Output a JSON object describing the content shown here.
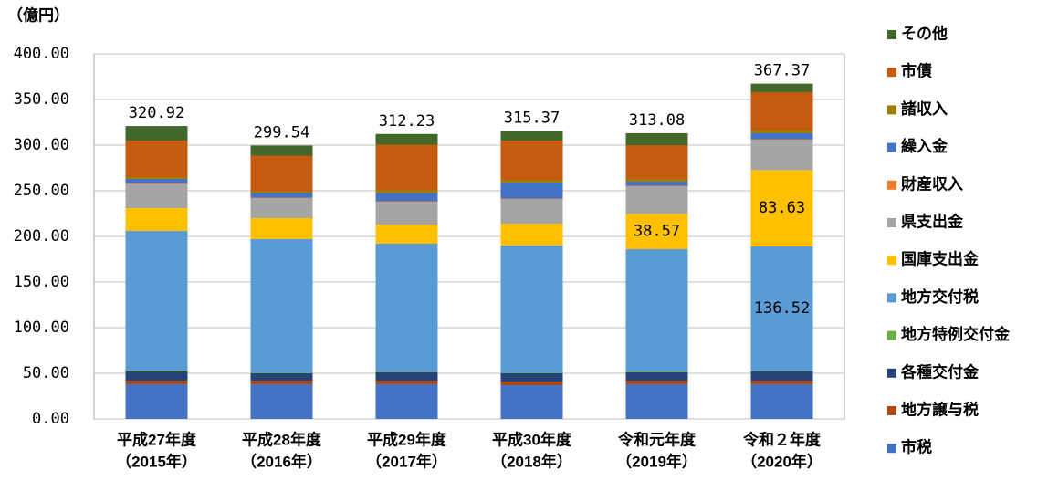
{
  "chart_data": {
    "type": "stacked-bar",
    "y_label": "（億円）",
    "categories": [
      [
        "平成27年度",
        "（2015年）"
      ],
      [
        "平成28年度",
        "（2016年）"
      ],
      [
        "平成29年度",
        "（2017年）"
      ],
      [
        "平成30年度",
        "（2018年）"
      ],
      [
        "令和元年度",
        "（2019年）"
      ],
      [
        "令和２年度",
        "（2020年）"
      ]
    ],
    "ylim": [
      0,
      400
    ],
    "yticks": [
      {
        "value": 0,
        "label": "0.00"
      },
      {
        "value": 50,
        "label": "50.00"
      },
      {
        "value": 100,
        "label": "100.00"
      },
      {
        "value": 150,
        "label": "150.00"
      },
      {
        "value": 200,
        "label": "200.00"
      },
      {
        "value": 250,
        "label": "250.00"
      },
      {
        "value": 300,
        "label": "300.00"
      },
      {
        "value": 350,
        "label": "350.00"
      },
      {
        "value": 400,
        "label": "400.00"
      }
    ],
    "grid": true,
    "legend": "right",
    "totals": [
      320.92,
      299.54,
      312.23,
      315.37,
      313.08,
      367.37
    ],
    "series": [
      {
        "name": "市税",
        "color": "#4472c4",
        "values": [
          38,
          38,
          38,
          37,
          38,
          38
        ]
      },
      {
        "name": "地方譲与税",
        "color": "#b04a14",
        "values": [
          4,
          4,
          4,
          4,
          4,
          4
        ]
      },
      {
        "name": "各種交付金",
        "color": "#264478",
        "values": [
          10,
          8,
          9,
          9,
          9,
          10
        ]
      },
      {
        "name": "地方特例交付金",
        "color": "#70ad47",
        "values": [
          1,
          0.5,
          0.5,
          0.5,
          1,
          0.5
        ]
      },
      {
        "name": "地方交付税",
        "color": "#5b9bd5",
        "values": [
          153,
          146.5,
          140.5,
          139.5,
          134,
          136.52
        ],
        "value_labels": [
          null,
          null,
          null,
          null,
          null,
          "136.52"
        ]
      },
      {
        "name": "国庫支出金",
        "color": "#ffc000",
        "values": [
          25,
          23,
          21,
          24,
          38.57,
          83.63
        ],
        "value_labels": [
          null,
          null,
          null,
          null,
          "38.57",
          "83.63"
        ]
      },
      {
        "name": "県支出金",
        "color": "#a5a5a5",
        "values": [
          26,
          22,
          25,
          27,
          30.43,
          33.35
        ]
      },
      {
        "name": "財産収入",
        "color": "#ed7d31",
        "values": [
          1,
          0.5,
          0.5,
          0.5,
          0.5,
          0.5
        ]
      },
      {
        "name": "繰入金",
        "color": "#4472c4",
        "values": [
          5,
          5,
          9,
          17.5,
          4.5,
          6.5
        ]
      },
      {
        "name": "諸収入",
        "color": "#9e7e00",
        "values": [
          2,
          2,
          3,
          3,
          3,
          3
        ]
      },
      {
        "name": "市債",
        "color": "#c55a11",
        "values": [
          40,
          39,
          50,
          43,
          37,
          42
        ]
      },
      {
        "name": "その他",
        "color": "#43682b",
        "values": [
          15.92,
          11.04,
          11.73,
          10.37,
          13.08,
          9.37
        ]
      }
    ]
  }
}
